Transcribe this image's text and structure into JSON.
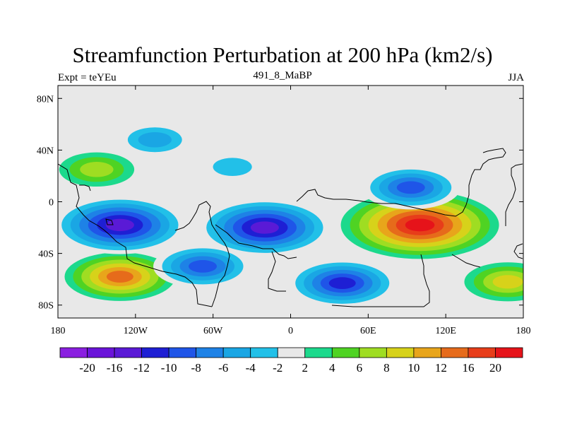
{
  "chart_data": {
    "type": "heatmap",
    "title": "Streamfunction Perturbation at 200 hPa (km2/s)",
    "left_string": "Expt = teYEu",
    "center_string": "491_8_MaBP",
    "right_string": "JJA",
    "x_ticks": [
      "180",
      "120W",
      "60W",
      "0",
      "60E",
      "120E",
      "180"
    ],
    "x_tick_values": [
      -180,
      -120,
      -60,
      0,
      60,
      120,
      180
    ],
    "y_ticks": [
      "80N",
      "40N",
      "0",
      "40S",
      "80S"
    ],
    "y_tick_values": [
      80,
      40,
      0,
      -40,
      -80
    ],
    "xlim": [
      -180,
      180
    ],
    "ylim": [
      -90,
      90
    ],
    "colorbar": {
      "labels": [
        "-20",
        "-16",
        "-12",
        "-10",
        "-8",
        "-6",
        "-4",
        "-2",
        "2",
        "4",
        "6",
        "8",
        "10",
        "12",
        "16",
        "20"
      ],
      "colors": [
        "#8a1fe0",
        "#6a14d9",
        "#5a1ad6",
        "#1e1fd4",
        "#1f55e8",
        "#1e82e6",
        "#1aa6e4",
        "#22c0e8",
        "#e8e8e8",
        "#1cd98c",
        "#4fd323",
        "#9fdd22",
        "#d7d21a",
        "#e8a51b",
        "#e66b1b",
        "#e73d1a",
        "#e6131a"
      ]
    },
    "features": [
      {
        "label": "strong high",
        "lon": 100,
        "lat": -18,
        "value": 20
      },
      {
        "label": "high",
        "lon": -132,
        "lat": -58,
        "value": 12
      },
      {
        "label": "high",
        "lon": -150,
        "lat": 25,
        "value": 6
      },
      {
        "label": "high",
        "lon": 168,
        "lat": -62,
        "value": 8
      },
      {
        "label": "low",
        "lon": -20,
        "lat": -20,
        "value": -16
      },
      {
        "label": "low",
        "lon": -132,
        "lat": -18,
        "value": -16
      },
      {
        "label": "low",
        "lon": 40,
        "lat": -63,
        "value": -12
      },
      {
        "label": "low",
        "lon": -68,
        "lat": -50,
        "value": -10
      },
      {
        "label": "low",
        "lon": 93,
        "lat": 11,
        "value": -10
      },
      {
        "label": "low",
        "lon": -45,
        "lat": 27,
        "value": -4
      },
      {
        "label": "low",
        "lon": -105,
        "lat": 48,
        "value": -6
      }
    ]
  }
}
